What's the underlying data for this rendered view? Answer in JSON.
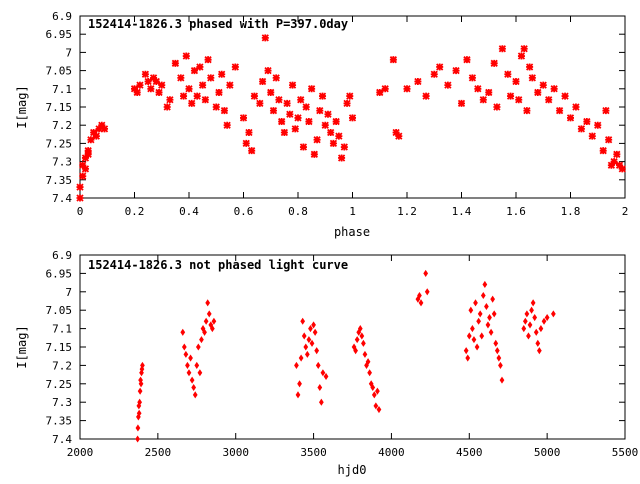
{
  "chart_data": [
    {
      "type": "scatter",
      "title": "152414-1826.3 phased with P=397.0day",
      "xlabel": "phase",
      "ylabel": "I[mag]",
      "xlim": [
        0,
        2
      ],
      "ylim": [
        6.9,
        7.4
      ],
      "y_inverted": true,
      "x_ticks": [
        "0",
        "0.2",
        "0.4",
        "0.6",
        "0.8",
        "1",
        "1.2",
        "1.4",
        "1.6",
        "1.8",
        "2"
      ],
      "y_ticks": [
        "6.9",
        "6.95",
        "7",
        "7.05",
        "7.1",
        "7.15",
        "7.2",
        "7.25",
        "7.3",
        "7.35",
        "7.4"
      ],
      "grid": false,
      "marker_color": "#ff0000",
      "marker": "star",
      "x": [
        0.0,
        0.0,
        0.01,
        0.01,
        0.02,
        0.02,
        0.03,
        0.03,
        0.04,
        0.05,
        0.06,
        0.07,
        0.08,
        0.09,
        0.2,
        0.21,
        0.22,
        0.24,
        0.25,
        0.26,
        0.27,
        0.28,
        0.29,
        0.3,
        0.32,
        0.33,
        0.35,
        0.37,
        0.38,
        0.39,
        0.4,
        0.41,
        0.42,
        0.43,
        0.44,
        0.45,
        0.46,
        0.47,
        0.48,
        0.5,
        0.51,
        0.52,
        0.53,
        0.54,
        0.55,
        0.57,
        0.6,
        0.61,
        0.62,
        0.63,
        0.64,
        0.66,
        0.67,
        0.68,
        0.69,
        0.7,
        0.71,
        0.72,
        0.73,
        0.74,
        0.75,
        0.76,
        0.77,
        0.78,
        0.79,
        0.8,
        0.81,
        0.82,
        0.83,
        0.84,
        0.85,
        0.86,
        0.87,
        0.88,
        0.89,
        0.9,
        0.91,
        0.92,
        0.93,
        0.94,
        0.95,
        0.96,
        0.97,
        0.98,
        0.99,
        1.0,
        1.1,
        1.12,
        1.15,
        1.16,
        1.17,
        1.2,
        1.24,
        1.27,
        1.3,
        1.32,
        1.35,
        1.38,
        1.4,
        1.42,
        1.44,
        1.46,
        1.48,
        1.5,
        1.52,
        1.53,
        1.55,
        1.57,
        1.58,
        1.6,
        1.61,
        1.62,
        1.63,
        1.64,
        1.65,
        1.66,
        1.68,
        1.7,
        1.72,
        1.74,
        1.76,
        1.78,
        1.8,
        1.82,
        1.84,
        1.86,
        1.88,
        1.9,
        1.92,
        1.93,
        1.94,
        1.95,
        1.96,
        1.97,
        1.98,
        1.99
      ],
      "y": [
        7.4,
        7.37,
        7.34,
        7.31,
        7.32,
        7.29,
        7.27,
        7.28,
        7.24,
        7.22,
        7.23,
        7.21,
        7.2,
        7.21,
        7.1,
        7.11,
        7.09,
        7.06,
        7.08,
        7.1,
        7.07,
        7.08,
        7.11,
        7.09,
        7.15,
        7.13,
        7.03,
        7.07,
        7.12,
        7.01,
        7.1,
        7.14,
        7.05,
        7.12,
        7.04,
        7.09,
        7.13,
        7.02,
        7.07,
        7.15,
        7.11,
        7.06,
        7.16,
        7.2,
        7.09,
        7.04,
        7.18,
        7.25,
        7.22,
        7.27,
        7.12,
        7.14,
        7.08,
        6.96,
        7.05,
        7.11,
        7.16,
        7.07,
        7.13,
        7.19,
        7.22,
        7.14,
        7.17,
        7.09,
        7.21,
        7.18,
        7.13,
        7.26,
        7.15,
        7.19,
        7.1,
        7.28,
        7.24,
        7.16,
        7.12,
        7.2,
        7.17,
        7.22,
        7.25,
        7.19,
        7.23,
        7.29,
        7.26,
        7.14,
        7.12,
        7.18,
        7.11,
        7.1,
        7.02,
        7.22,
        7.23,
        7.1,
        7.08,
        7.12,
        7.06,
        7.04,
        7.09,
        7.05,
        7.14,
        7.02,
        7.07,
        7.1,
        7.13,
        7.11,
        7.03,
        7.15,
        6.99,
        7.06,
        7.12,
        7.08,
        7.13,
        7.01,
        6.99,
        7.16,
        7.04,
        7.07,
        7.11,
        7.09,
        7.13,
        7.1,
        7.16,
        7.12,
        7.18,
        7.15,
        7.21,
        7.19,
        7.23,
        7.2,
        7.27,
        7.16,
        7.24,
        7.31,
        7.3,
        7.28,
        7.31,
        7.32
      ]
    },
    {
      "type": "scatter",
      "title": "152414-1826.3 not phased light curve",
      "xlabel": "hjd0",
      "ylabel": "I[mag]",
      "xlim": [
        2000,
        5500
      ],
      "ylim": [
        6.9,
        7.4
      ],
      "y_inverted": true,
      "x_ticks": [
        "2000",
        "2500",
        "3000",
        "3500",
        "4000",
        "4500",
        "5000",
        "5500"
      ],
      "y_ticks": [
        "6.9",
        "6.95",
        "7",
        "7.05",
        "7.1",
        "7.15",
        "7.2",
        "7.25",
        "7.3",
        "7.35",
        "7.4"
      ],
      "grid": false,
      "marker_color": "#ff0000",
      "marker": "diamond",
      "x": [
        2370,
        2372,
        2375,
        2378,
        2380,
        2383,
        2386,
        2389,
        2392,
        2395,
        2398,
        2401,
        2660,
        2670,
        2680,
        2690,
        2700,
        2710,
        2720,
        2730,
        2740,
        2750,
        2760,
        2770,
        2780,
        2790,
        2800,
        2810,
        2820,
        2830,
        2840,
        2850,
        2860,
        3390,
        3400,
        3410,
        3420,
        3430,
        3440,
        3450,
        3460,
        3470,
        3480,
        3490,
        3500,
        3510,
        3520,
        3530,
        3540,
        3550,
        3560,
        3580,
        3760,
        3770,
        3780,
        3790,
        3800,
        3810,
        3820,
        3830,
        3840,
        3850,
        3860,
        3870,
        3880,
        3890,
        3900,
        3910,
        3920,
        4170,
        4180,
        4190,
        4220,
        4230,
        4480,
        4490,
        4500,
        4510,
        4520,
        4530,
        4540,
        4550,
        4560,
        4570,
        4580,
        4590,
        4600,
        4610,
        4620,
        4630,
        4640,
        4650,
        4660,
        4670,
        4680,
        4690,
        4700,
        4710,
        4850,
        4860,
        4870,
        4880,
        4890,
        4900,
        4910,
        4920,
        4930,
        4940,
        4950,
        4960,
        4980,
        5000,
        5040
      ],
      "y": [
        7.4,
        7.37,
        7.34,
        7.31,
        7.33,
        7.3,
        7.27,
        7.24,
        7.25,
        7.22,
        7.21,
        7.2,
        7.11,
        7.15,
        7.17,
        7.2,
        7.22,
        7.18,
        7.24,
        7.26,
        7.28,
        7.2,
        7.15,
        7.22,
        7.13,
        7.1,
        7.11,
        7.08,
        7.03,
        7.06,
        7.09,
        7.1,
        7.08,
        7.2,
        7.28,
        7.25,
        7.18,
        7.08,
        7.12,
        7.15,
        7.17,
        7.13,
        7.1,
        7.14,
        7.09,
        7.11,
        7.16,
        7.2,
        7.26,
        7.3,
        7.22,
        7.23,
        7.15,
        7.16,
        7.13,
        7.11,
        7.1,
        7.12,
        7.14,
        7.17,
        7.2,
        7.19,
        7.22,
        7.25,
        7.26,
        7.28,
        7.31,
        7.27,
        7.32,
        7.02,
        7.01,
        7.03,
        6.95,
        7.0,
        7.16,
        7.18,
        7.12,
        7.05,
        7.1,
        7.13,
        7.03,
        7.15,
        7.08,
        7.06,
        7.12,
        7.01,
        6.98,
        7.04,
        7.09,
        7.07,
        7.11,
        7.02,
        7.06,
        7.14,
        7.16,
        7.18,
        7.2,
        7.24,
        7.1,
        7.08,
        7.06,
        7.12,
        7.09,
        7.05,
        7.03,
        7.07,
        7.11,
        7.14,
        7.16,
        7.1,
        7.08,
        7.07,
        7.06
      ]
    }
  ]
}
